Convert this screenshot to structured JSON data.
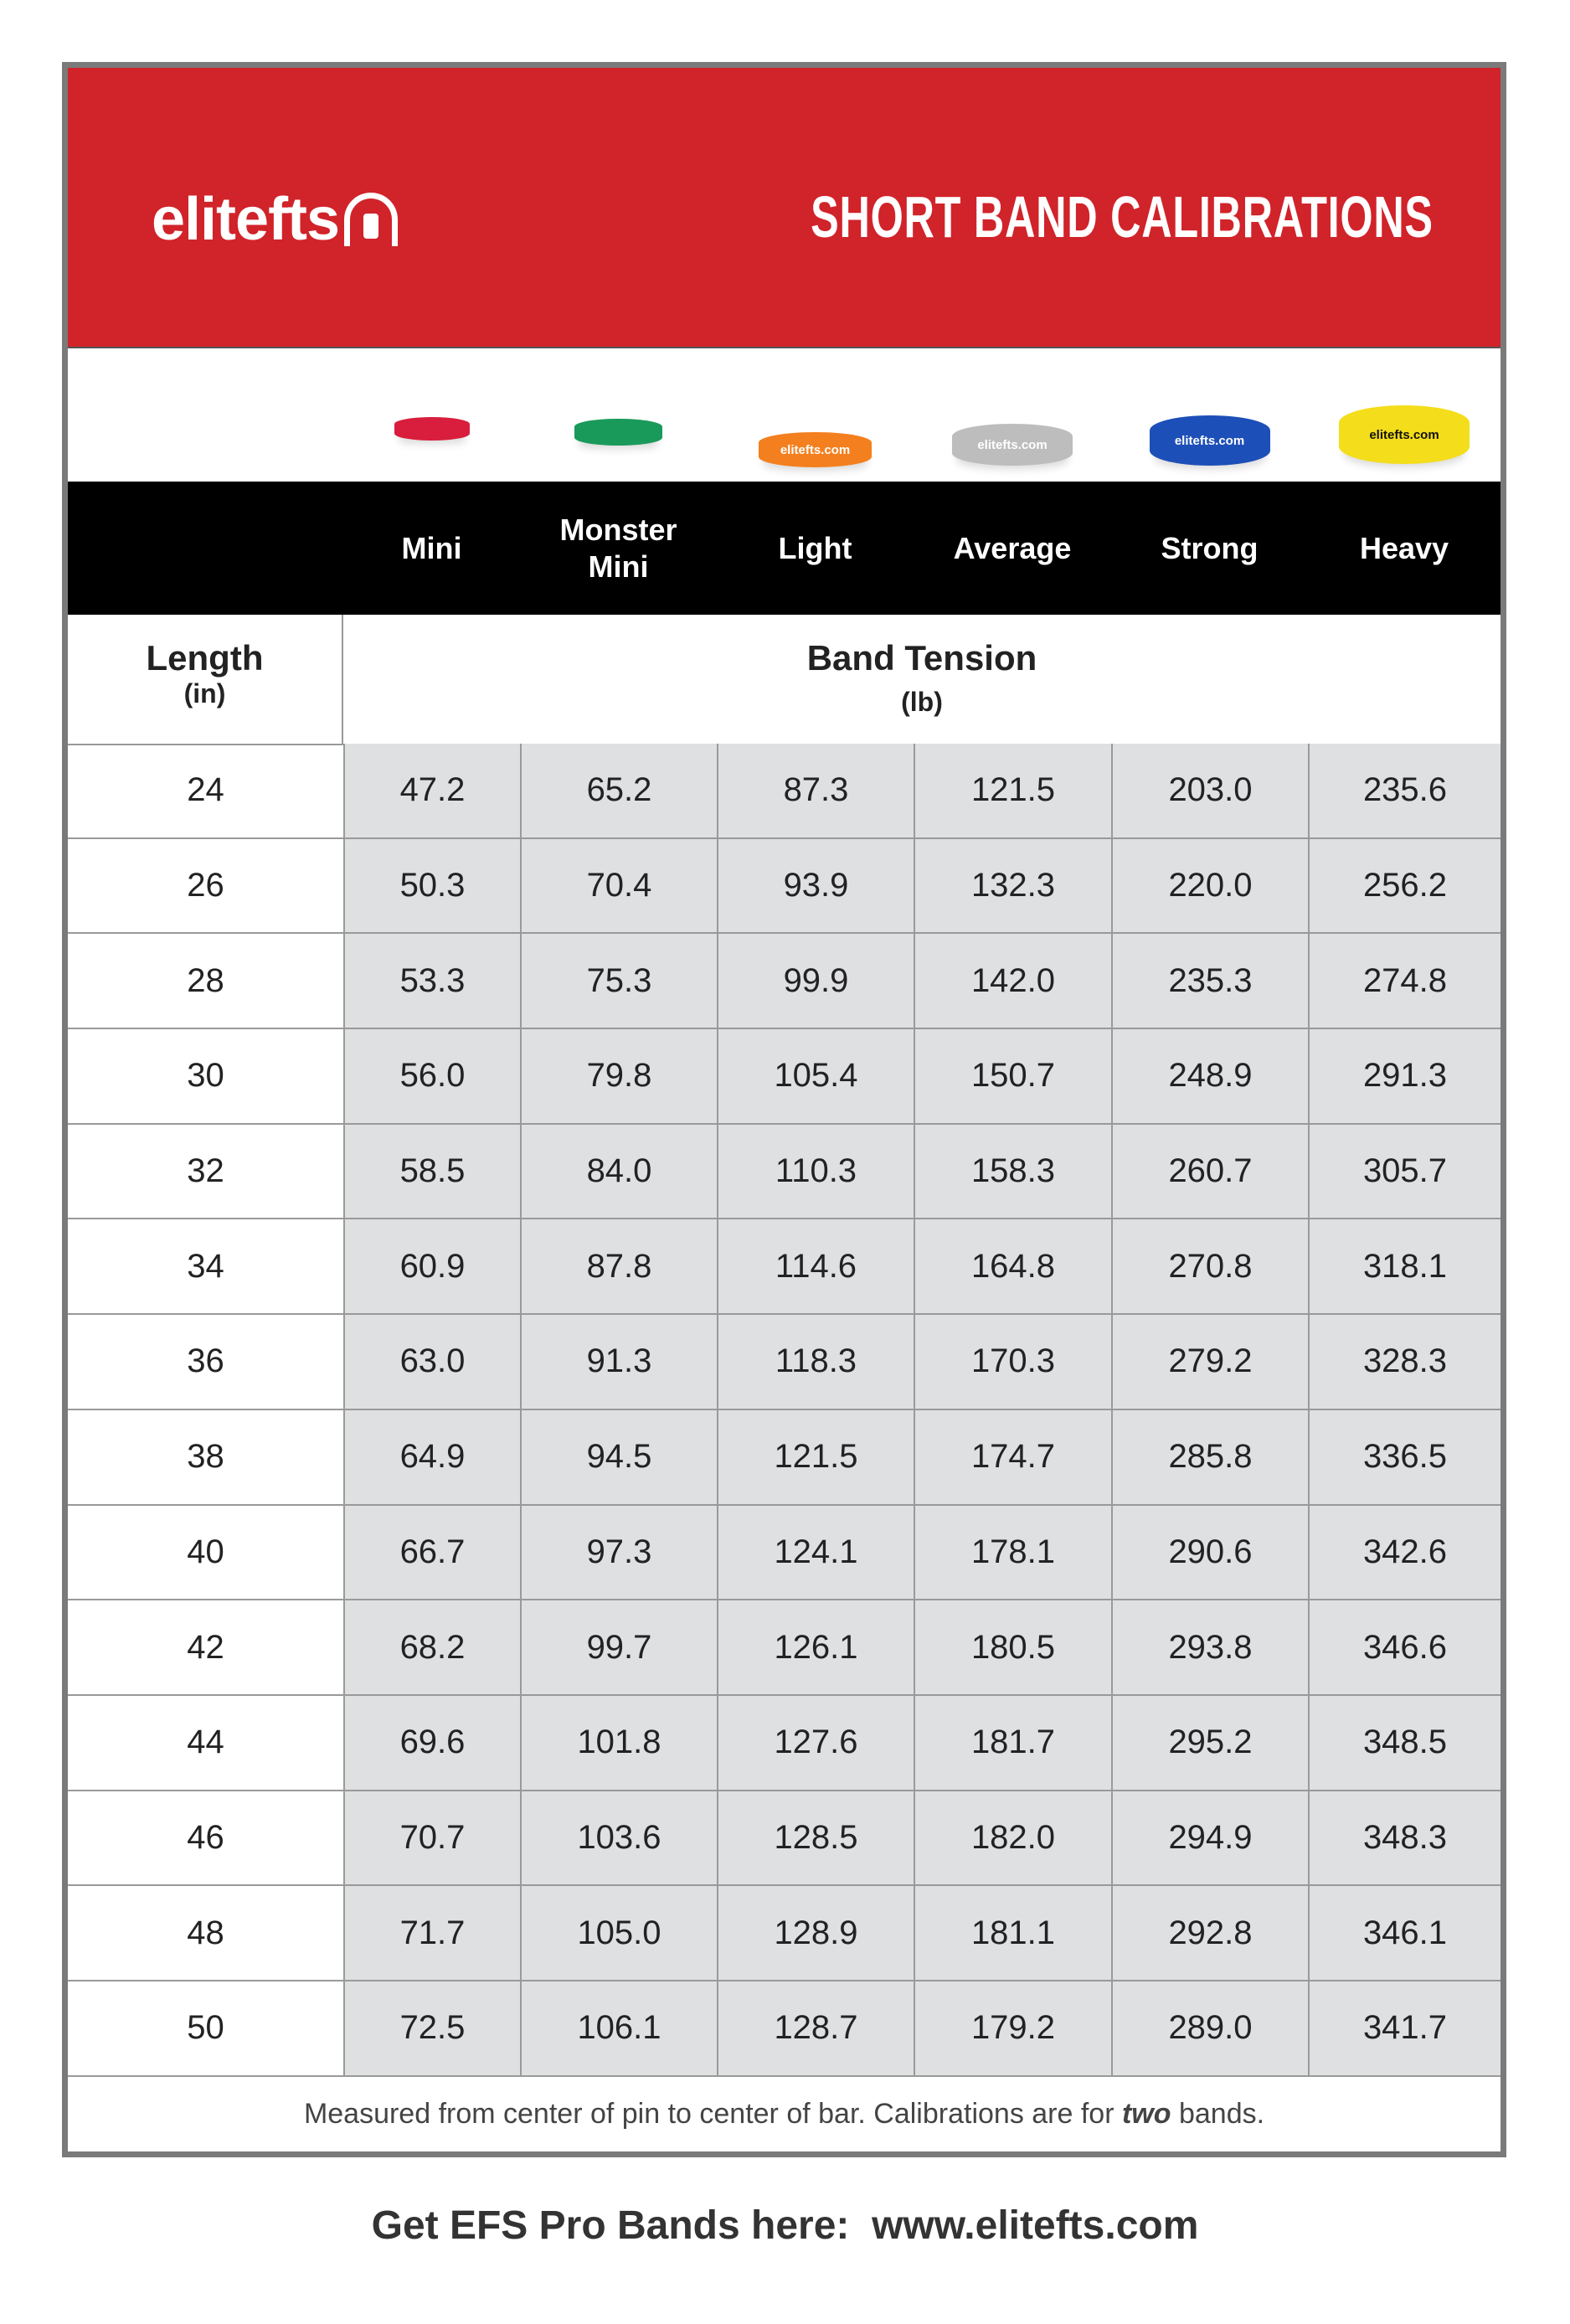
{
  "header": {
    "logo_text": "elitefts",
    "title": "SHORT BAND CALIBRATIONS",
    "brand_color": "#d1232a"
  },
  "bands": [
    {
      "name": "Mini",
      "color": "#d81e3c",
      "label": ""
    },
    {
      "name": "Monster Mini",
      "color": "#1a9a5a",
      "label": ""
    },
    {
      "name": "Light",
      "color": "#f47f1e",
      "label": "elitefts.com"
    },
    {
      "name": "Average",
      "color": "#bdbdbd",
      "label": "elitefts.com"
    },
    {
      "name": "Strong",
      "color": "#1d4fb8",
      "label": "elitefts.com"
    },
    {
      "name": "Heavy",
      "color": "#f4dd1a",
      "label": "elitefts.com"
    }
  ],
  "columns": [
    "Mini",
    "Monster Mini",
    "Light",
    "Average",
    "Strong",
    "Heavy"
  ],
  "length_header": {
    "title": "Length",
    "unit": "(in)"
  },
  "tension_header": {
    "title": "Band Tension",
    "unit": "(lb)"
  },
  "rows": [
    {
      "length": "24",
      "values": [
        "47.2",
        "65.2",
        "87.3",
        "121.5",
        "203.0",
        "235.6"
      ]
    },
    {
      "length": "26",
      "values": [
        "50.3",
        "70.4",
        "93.9",
        "132.3",
        "220.0",
        "256.2"
      ]
    },
    {
      "length": "28",
      "values": [
        "53.3",
        "75.3",
        "99.9",
        "142.0",
        "235.3",
        "274.8"
      ]
    },
    {
      "length": "30",
      "values": [
        "56.0",
        "79.8",
        "105.4",
        "150.7",
        "248.9",
        "291.3"
      ]
    },
    {
      "length": "32",
      "values": [
        "58.5",
        "84.0",
        "110.3",
        "158.3",
        "260.7",
        "305.7"
      ]
    },
    {
      "length": "34",
      "values": [
        "60.9",
        "87.8",
        "114.6",
        "164.8",
        "270.8",
        "318.1"
      ]
    },
    {
      "length": "36",
      "values": [
        "63.0",
        "91.3",
        "118.3",
        "170.3",
        "279.2",
        "328.3"
      ]
    },
    {
      "length": "38",
      "values": [
        "64.9",
        "94.5",
        "121.5",
        "174.7",
        "285.8",
        "336.5"
      ]
    },
    {
      "length": "40",
      "values": [
        "66.7",
        "97.3",
        "124.1",
        "178.1",
        "290.6",
        "342.6"
      ]
    },
    {
      "length": "42",
      "values": [
        "68.2",
        "99.7",
        "126.1",
        "180.5",
        "293.8",
        "346.6"
      ]
    },
    {
      "length": "44",
      "values": [
        "69.6",
        "101.8",
        "127.6",
        "181.7",
        "295.2",
        "348.5"
      ]
    },
    {
      "length": "46",
      "values": [
        "70.7",
        "103.6",
        "128.5",
        "182.0",
        "294.9",
        "348.3"
      ]
    },
    {
      "length": "48",
      "values": [
        "71.7",
        "105.0",
        "128.9",
        "181.1",
        "292.8",
        "346.1"
      ]
    },
    {
      "length": "50",
      "values": [
        "72.5",
        "106.1",
        "128.7",
        "179.2",
        "289.0",
        "341.7"
      ]
    }
  ],
  "footnote": {
    "before": "Measured from center of pin to center of bar. Calibrations are for ",
    "emphasis": "two",
    "after": " bands."
  },
  "bottom_text": "Get EFS Pro Bands here:  www.elitefts.com"
}
